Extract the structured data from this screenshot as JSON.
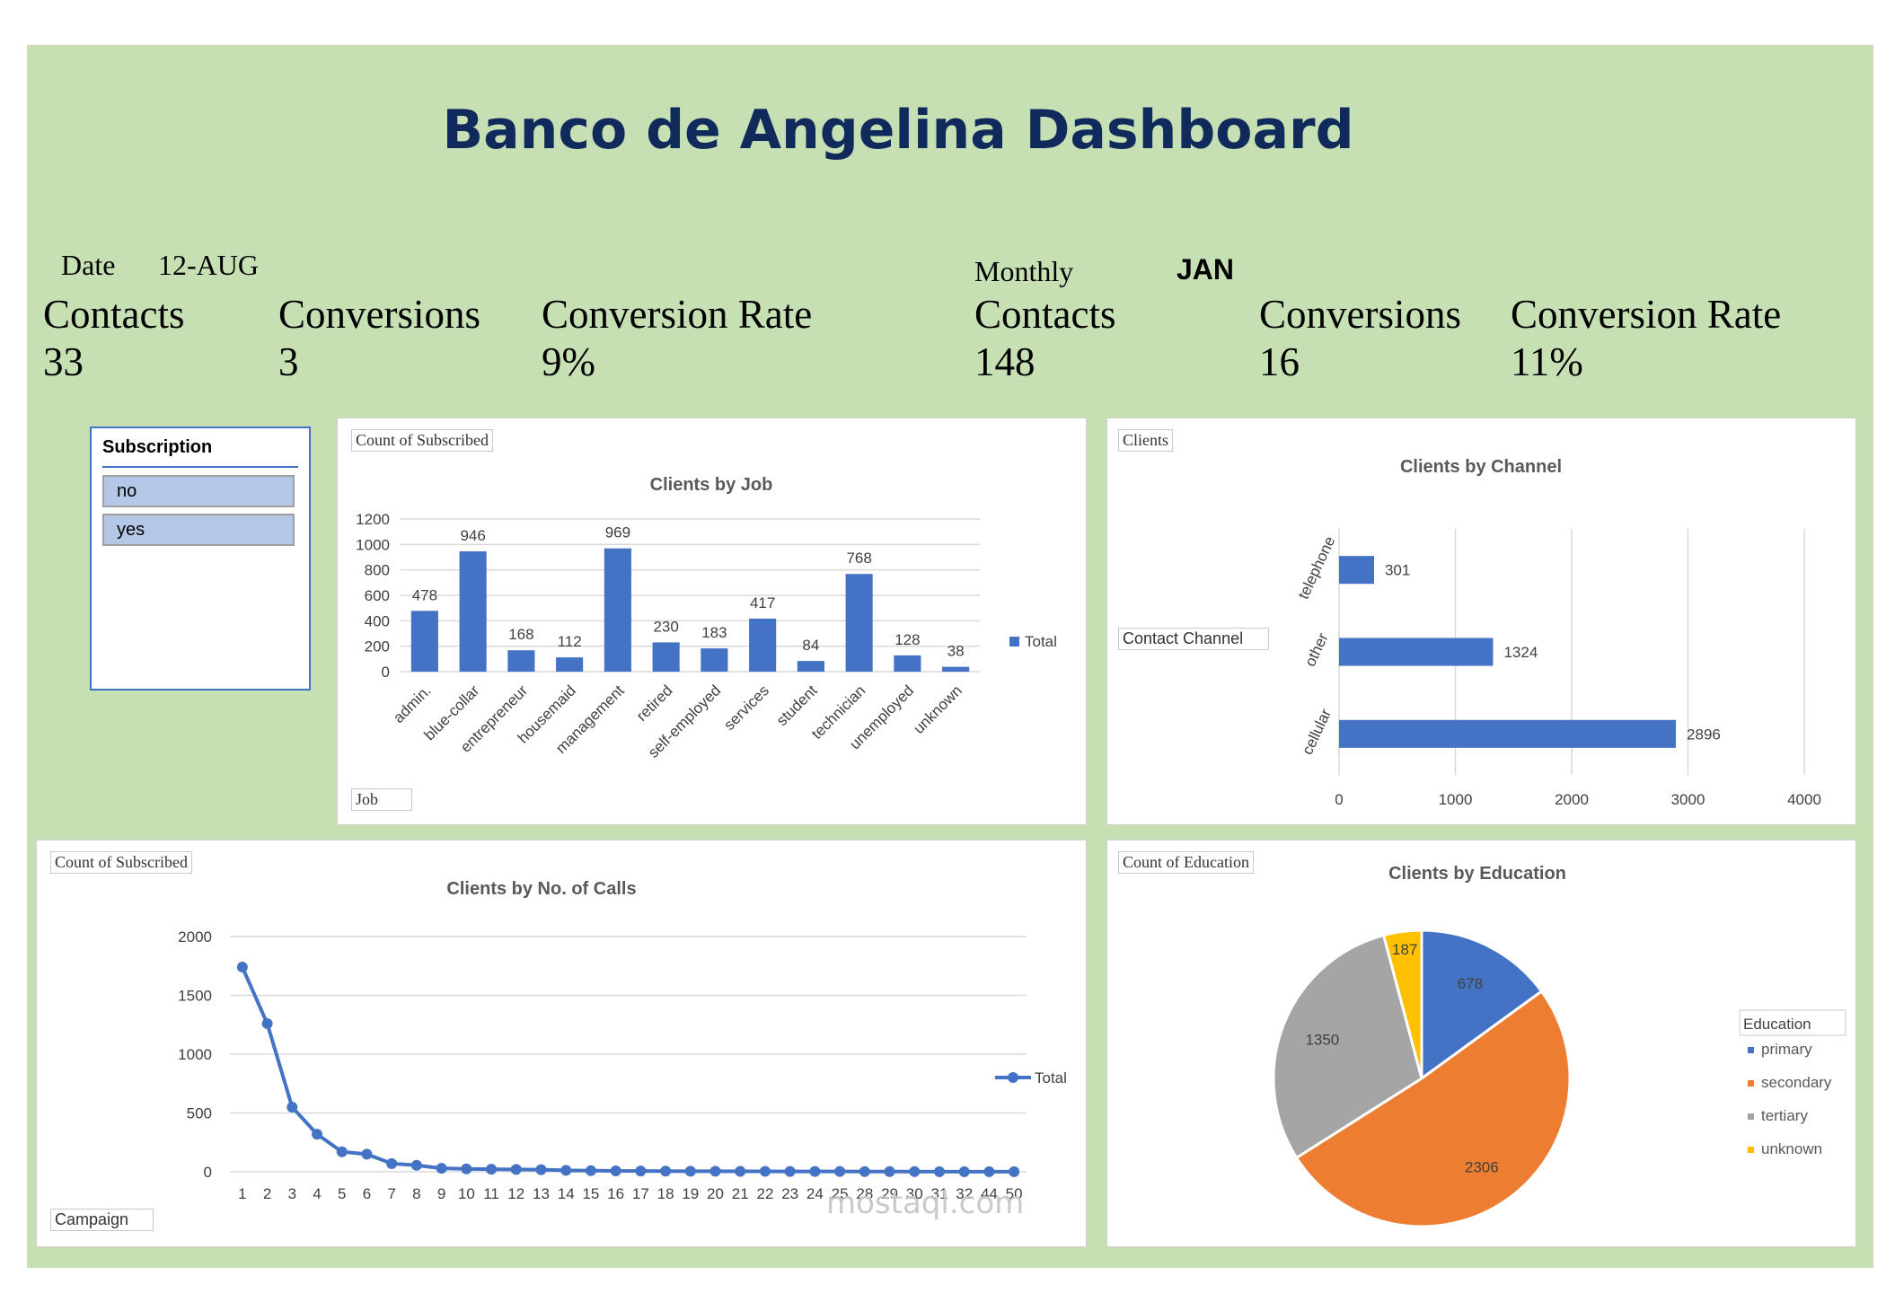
{
  "title": "Banco de Angelina Dashboard",
  "daily": {
    "date_label": "Date",
    "date_value": "12-AUG",
    "contacts_label": "Contacts",
    "contacts_value": "33",
    "conversions_label": "Conversions",
    "conversions_value": "3",
    "rate_label": "Conversion Rate",
    "rate_value": "9%"
  },
  "monthly": {
    "label": "Monthly",
    "value": "JAN",
    "contacts_label": "Contacts",
    "contacts_value": "148",
    "conversions_label": "Conversions",
    "conversions_value": "16",
    "rate_label": "Conversion Rate",
    "rate_value": "11%"
  },
  "slicer": {
    "title": "Subscription",
    "items": [
      "no",
      "yes"
    ]
  },
  "job_chart_tags": {
    "field": "Count of Subscribed",
    "axis": "Job"
  },
  "channel_chart_tags": {
    "field": "Clients",
    "axis": "Contact Channel"
  },
  "calls_chart_tags": {
    "field": "Count of Subscribed",
    "axis": "Campaign"
  },
  "edu_chart_tags": {
    "field": "Count of Education"
  },
  "watermark": "mostaql.com",
  "chart_data": [
    {
      "type": "bar",
      "title": "Clients by Job",
      "categories": [
        "admin.",
        "blue-collar",
        "entrepreneur",
        "housemaid",
        "management",
        "retired",
        "self-employed",
        "services",
        "student",
        "technician",
        "unemployed",
        "unknown"
      ],
      "values": [
        478,
        946,
        168,
        112,
        969,
        230,
        183,
        417,
        84,
        768,
        128,
        38
      ],
      "yticks": [
        0,
        200,
        400,
        600,
        800,
        1000,
        1200
      ],
      "ylim": [
        0,
        1200
      ],
      "legend": "Total",
      "color": "#4472c4"
    },
    {
      "type": "bar",
      "orientation": "horizontal",
      "title": "Clients by Channel",
      "categories": [
        "telephone",
        "other",
        "cellular"
      ],
      "values": [
        301,
        1324,
        2896
      ],
      "xticks": [
        0,
        1000,
        2000,
        3000,
        4000
      ],
      "xlim": [
        0,
        4000
      ],
      "color": "#4472c4"
    },
    {
      "type": "line",
      "title": "Clients by No. of Calls",
      "x": [
        "1",
        "2",
        "3",
        "4",
        "5",
        "6",
        "7",
        "8",
        "9",
        "10",
        "11",
        "12",
        "13",
        "14",
        "15",
        "16",
        "17",
        "18",
        "19",
        "20",
        "21",
        "22",
        "23",
        "24",
        "25",
        "28",
        "29",
        "30",
        "31",
        "32",
        "44",
        "50"
      ],
      "values": [
        1740,
        1260,
        550,
        320,
        170,
        150,
        70,
        55,
        30,
        25,
        22,
        20,
        18,
        12,
        10,
        8,
        7,
        6,
        5,
        5,
        4,
        4,
        3,
        3,
        3,
        2,
        2,
        2,
        1,
        1,
        1,
        1
      ],
      "yticks": [
        0,
        500,
        1000,
        1500,
        2000
      ],
      "ylim": [
        0,
        2000
      ],
      "legend": "Total",
      "color": "#4472c4"
    },
    {
      "type": "pie",
      "title": "Clients by Education",
      "legend_title": "Education",
      "labels": [
        "primary",
        "secondary",
        "tertiary",
        "unknown"
      ],
      "values": [
        678,
        2306,
        1350,
        187
      ],
      "colors": [
        "#4472c4",
        "#ed7d31",
        "#a5a5a5",
        "#ffc000"
      ]
    }
  ]
}
